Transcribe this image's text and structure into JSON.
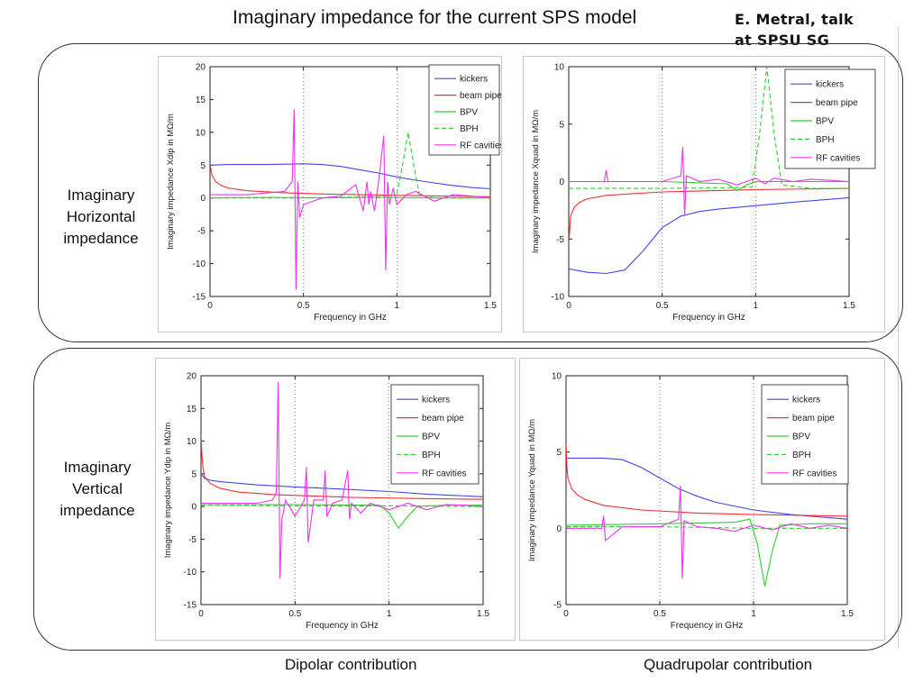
{
  "slide": {
    "title": "Imaginary impedance for the current SPS model",
    "credit_line1": "E. Metral, talk",
    "credit_line2": "at SPSU SG",
    "row_h": [
      "Imaginary",
      "Horizontal",
      "impedance"
    ],
    "row_v": [
      "Imaginary",
      "Vertical",
      "impedance"
    ],
    "footer_left": "Dipolar contribution",
    "footer_right": "Quadrupolar contribution"
  },
  "series_styles": [
    {
      "name": "kickers",
      "color": "#4444ee",
      "dash": ""
    },
    {
      "name": "beam pipe",
      "color": "#ee3333",
      "dash": ""
    },
    {
      "name": "BPV",
      "color": "#33cc33",
      "dash": ""
    },
    {
      "name": "BPH",
      "color": "#33cc33",
      "dash": "5,3"
    },
    {
      "name": "RF cavities",
      "color": "#ee33ee",
      "dash": ""
    }
  ],
  "chart_data": [
    {
      "type": "line",
      "id": "h-dip",
      "xlabel": "Frequency in GHz",
      "ylabel": "Imaginary impedance Xdip in MΩ/m",
      "xlim": [
        0,
        1.5
      ],
      "ylim": [
        -15,
        20
      ],
      "xticks": [
        0,
        0.5,
        1,
        1.5
      ],
      "yticks": [
        -15,
        -10,
        -5,
        0,
        5,
        10,
        15,
        20
      ],
      "grid": "dotted vertical",
      "legend": "top-right",
      "series": [
        {
          "name": "kickers",
          "x": [
            0,
            0.1,
            0.3,
            0.5,
            0.6,
            0.7,
            0.8,
            0.9,
            1.0,
            1.1,
            1.2,
            1.3,
            1.4,
            1.5
          ],
          "y": [
            5,
            5.1,
            5.1,
            5.2,
            5.1,
            4.8,
            4.3,
            3.8,
            3.2,
            2.7,
            2.3,
            1.9,
            1.6,
            1.4
          ]
        },
        {
          "name": "beam pipe",
          "x": [
            0,
            0.01,
            0.03,
            0.06,
            0.1,
            0.2,
            0.4,
            0.6,
            1.0,
            1.5
          ],
          "y": [
            5.2,
            3.5,
            2.5,
            1.9,
            1.5,
            1.1,
            0.8,
            0.6,
            0.4,
            0.2
          ]
        },
        {
          "name": "BPV",
          "x": [
            0,
            0.3,
            0.6,
            0.9,
            1.2,
            1.5
          ],
          "y": [
            0,
            0.1,
            0,
            0.1,
            0,
            0
          ]
        },
        {
          "name": "BPH",
          "x": [
            0,
            0.5,
            0.9,
            1.0,
            1.03,
            1.06,
            1.09,
            1.12,
            1.2,
            1.5
          ],
          "y": [
            0,
            0,
            0.2,
            0.5,
            5,
            10,
            5,
            0.5,
            0,
            0
          ]
        },
        {
          "name": "RF cavities",
          "x": [
            0,
            0.2,
            0.4,
            0.44,
            0.45,
            0.46,
            0.47,
            0.48,
            0.5,
            0.6,
            0.7,
            0.78,
            0.82,
            0.84,
            0.85,
            0.86,
            0.88,
            0.9,
            0.93,
            0.94,
            0.95,
            0.96,
            0.98,
            1.0,
            1.05,
            1.1,
            1.2,
            1.3,
            1.4,
            1.5
          ],
          "y": [
            0.5,
            0.5,
            1,
            2.5,
            13.5,
            -14,
            2.5,
            -3,
            -1,
            0,
            0.3,
            2,
            -2,
            2.5,
            -1,
            1,
            -2,
            2,
            9.5,
            -11,
            2.5,
            -1,
            1.5,
            -1,
            0.5,
            1,
            -0.5,
            0.5,
            0.3,
            0
          ]
        }
      ]
    },
    {
      "type": "line",
      "id": "h-quad",
      "xlabel": "Frequency in GHz",
      "ylabel": "Imaginary impedance Xquad in MΩ/m",
      "xlim": [
        0,
        1.5
      ],
      "ylim": [
        -10,
        10
      ],
      "xticks": [
        0,
        0.5,
        1,
        1.5
      ],
      "yticks": [
        -10,
        -5,
        0,
        5,
        10
      ],
      "grid": "dotted vertical",
      "legend": "top-right",
      "series": [
        {
          "name": "kickers",
          "x": [
            0,
            0.1,
            0.2,
            0.3,
            0.4,
            0.5,
            0.6,
            0.7,
            0.8,
            1.0,
            1.2,
            1.5
          ],
          "y": [
            -7.6,
            -7.9,
            -8,
            -7.7,
            -6,
            -4,
            -3,
            -2.6,
            -2.4,
            -2.1,
            -1.8,
            -1.4
          ]
        },
        {
          "name": "beam pipe",
          "x": [
            0,
            0.01,
            0.03,
            0.06,
            0.1,
            0.2,
            0.5,
            1.0,
            1.5
          ],
          "y": [
            -5.5,
            -3,
            -2.2,
            -1.8,
            -1.5,
            -1.2,
            -0.9,
            -0.7,
            -0.6
          ]
        },
        {
          "name": "BPV",
          "x": [
            0,
            0.5,
            0.85,
            0.9,
            0.95,
            1.0,
            1.2,
            1.5
          ],
          "y": [
            0,
            0,
            -0.2,
            -0.8,
            -0.3,
            0,
            0,
            0
          ]
        },
        {
          "name": "BPH",
          "x": [
            0,
            0.5,
            0.98,
            1.02,
            1.06,
            1.1,
            1.14,
            1.3,
            1.5
          ],
          "y": [
            -0.6,
            -0.6,
            -0.5,
            4,
            10,
            4,
            -0.3,
            -0.6,
            -0.6
          ]
        },
        {
          "name": "RF cavities",
          "x": [
            0,
            0.19,
            0.2,
            0.21,
            0.3,
            0.5,
            0.6,
            0.61,
            0.62,
            0.63,
            0.7,
            0.8,
            0.9,
            1.0,
            1.05,
            1.1,
            1.2,
            1.3,
            1.4,
            1.5
          ],
          "y": [
            0,
            0,
            1,
            0,
            0,
            0,
            0.5,
            3,
            -3,
            0.5,
            0,
            0.2,
            -0.3,
            0.3,
            -0.2,
            0.3,
            0,
            0.2,
            0.1,
            0
          ]
        }
      ]
    },
    {
      "type": "line",
      "id": "v-dip",
      "xlabel": "Frequency in GHz",
      "ylabel": "Imaginary impedance Ydip in MΩ/m",
      "xlim": [
        0,
        1.5
      ],
      "ylim": [
        -15,
        20
      ],
      "xticks": [
        0,
        0.5,
        1,
        1.5
      ],
      "yticks": [
        -15,
        -10,
        -5,
        0,
        5,
        10,
        15,
        20
      ],
      "grid": "dotted vertical",
      "legend": "top-right",
      "series": [
        {
          "name": "kickers",
          "x": [
            0,
            0.02,
            0.05,
            0.1,
            0.3,
            0.5,
            0.8,
            1.0,
            1.2,
            1.5
          ],
          "y": [
            5,
            4.3,
            4,
            3.8,
            3.3,
            3,
            2.6,
            2.3,
            1.9,
            1.5
          ]
        },
        {
          "name": "beam pipe",
          "x": [
            0,
            0.005,
            0.01,
            0.02,
            0.05,
            0.1,
            0.2,
            0.4,
            0.8,
            1.2,
            1.5
          ],
          "y": [
            11,
            8,
            6,
            4.5,
            3.5,
            2.8,
            2.2,
            1.8,
            1.4,
            1.2,
            1.1
          ]
        },
        {
          "name": "BPV",
          "x": [
            0,
            0.5,
            0.95,
            1.0,
            1.05,
            1.1,
            1.15,
            1.3,
            1.5
          ],
          "y": [
            0.3,
            0.3,
            0.2,
            -1,
            -3.3,
            -1.5,
            0,
            0.2,
            0.2
          ]
        },
        {
          "name": "BPH",
          "x": [
            0,
            0.5,
            1.0,
            1.5
          ],
          "y": [
            0.2,
            0.1,
            0.1,
            0
          ]
        },
        {
          "name": "RF cavities",
          "x": [
            0,
            0.3,
            0.38,
            0.4,
            0.41,
            0.42,
            0.43,
            0.45,
            0.5,
            0.55,
            0.56,
            0.57,
            0.6,
            0.65,
            0.66,
            0.67,
            0.7,
            0.75,
            0.78,
            0.79,
            0.8,
            0.85,
            0.9,
            1.0,
            1.1,
            1.2,
            1.3,
            1.4,
            1.5
          ],
          "y": [
            0.5,
            0.5,
            1,
            2,
            19,
            -11,
            -2,
            1,
            -1.5,
            1,
            6,
            -5.5,
            1,
            1,
            5.5,
            -1.5,
            0.5,
            1,
            5.5,
            -2,
            0.5,
            -1,
            0.5,
            -0.5,
            0.5,
            -0.5,
            0.3,
            0.2,
            0
          ]
        }
      ]
    },
    {
      "type": "line",
      "id": "v-quad",
      "xlabel": "Frequency in GHz",
      "ylabel": "Imaginary impedance Yquad in MΩ/m",
      "xlim": [
        0,
        1.5
      ],
      "ylim": [
        -5,
        10
      ],
      "xticks": [
        0,
        0.5,
        1,
        1.5
      ],
      "yticks": [
        -5,
        0,
        5,
        10
      ],
      "grid": "dotted vertical",
      "legend": "top-right",
      "series": [
        {
          "name": "kickers",
          "x": [
            0,
            0.1,
            0.2,
            0.3,
            0.4,
            0.5,
            0.6,
            0.7,
            0.8,
            1.0,
            1.2,
            1.5
          ],
          "y": [
            4.6,
            4.6,
            4.6,
            4.5,
            4,
            3.3,
            2.6,
            2.1,
            1.7,
            1.2,
            0.9,
            0.6
          ]
        },
        {
          "name": "beam pipe",
          "x": [
            0,
            0.005,
            0.01,
            0.03,
            0.06,
            0.1,
            0.2,
            0.4,
            0.7,
            1.0,
            1.5
          ],
          "y": [
            5.5,
            4,
            3.3,
            2.6,
            2.2,
            1.9,
            1.5,
            1.2,
            1.0,
            0.9,
            0.8
          ]
        },
        {
          "name": "BPV",
          "x": [
            0,
            0.5,
            0.9,
            0.98,
            1.02,
            1.06,
            1.1,
            1.14,
            1.3,
            1.5
          ],
          "y": [
            0.2,
            0.3,
            0.4,
            0.6,
            -1,
            -3.8,
            -1.5,
            0.2,
            0.3,
            0.3
          ]
        },
        {
          "name": "BPH",
          "x": [
            0,
            0.5,
            1.0,
            1.5
          ],
          "y": [
            0.1,
            0.1,
            0,
            0
          ]
        },
        {
          "name": "RF cavities",
          "x": [
            0,
            0.19,
            0.2,
            0.21,
            0.3,
            0.5,
            0.6,
            0.61,
            0.62,
            0.63,
            0.7,
            0.8,
            0.9,
            1.0,
            1.1,
            1.2,
            1.3,
            1.4,
            1.5
          ],
          "y": [
            0,
            0,
            0.8,
            -0.8,
            0.1,
            0.1,
            0.6,
            2.8,
            -3.3,
            0.5,
            0.1,
            0,
            -0.2,
            0.2,
            -0.1,
            0.3,
            0,
            0.2,
            0
          ]
        }
      ]
    }
  ]
}
